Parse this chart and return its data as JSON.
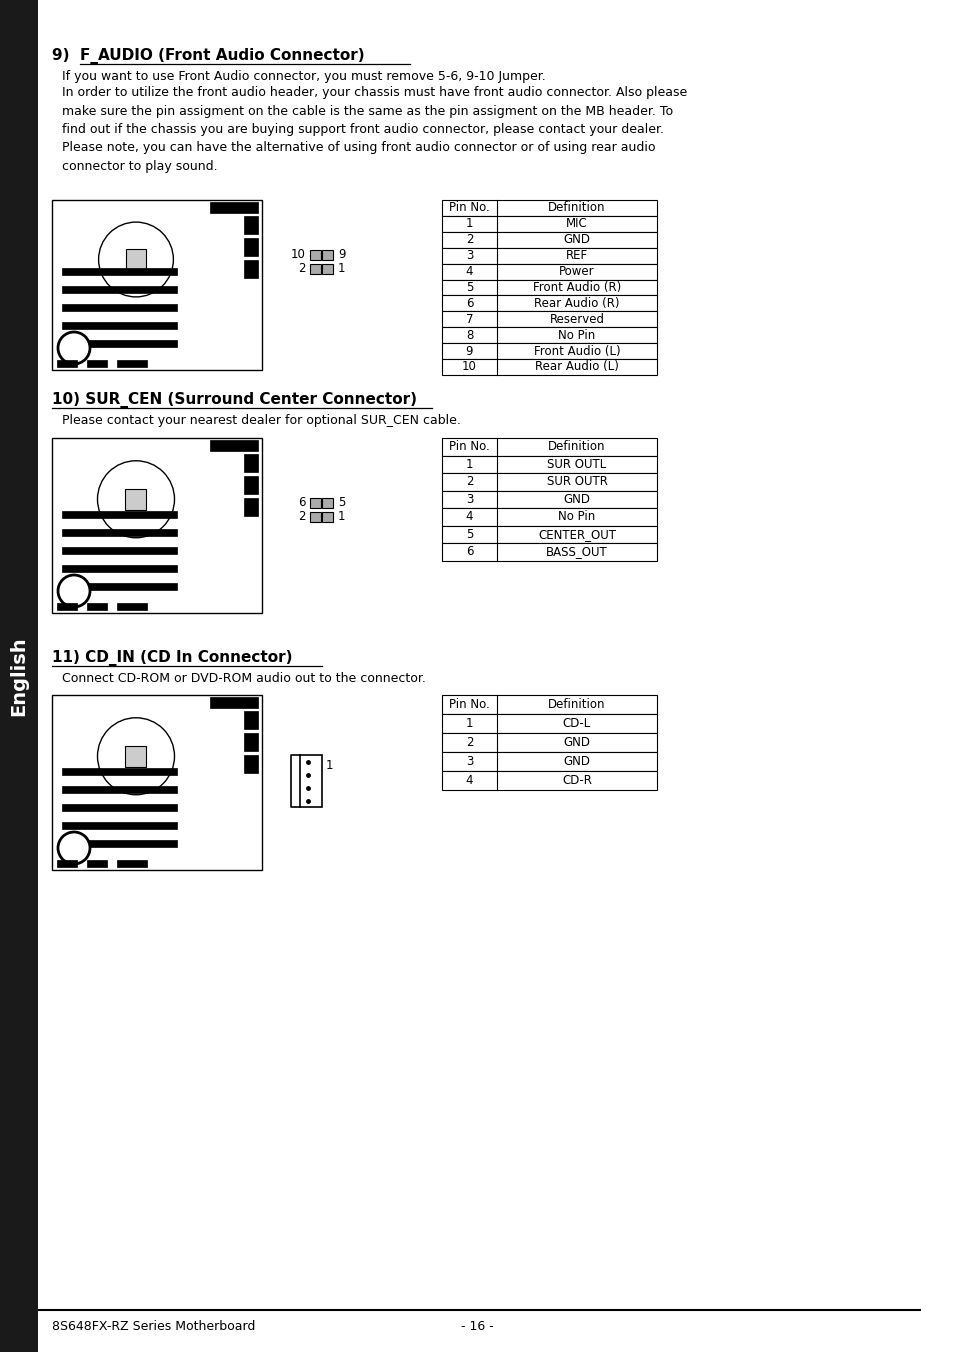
{
  "page_bg": "#ffffff",
  "sidebar_bg": "#1a1a1a",
  "sidebar_text": "English",
  "sidebar_text_color": "#ffffff",
  "footer_left": "8S648FX-RZ Series Motherboard",
  "footer_right": "- 16 -",
  "section9_title_prefix": "9)  ",
  "section9_title_bold": "F_AUDIO (Front Audio Connector)",
  "section9_body1": "If you want to use Front Audio connector, you must remove 5-6, 9-10 Jumper.",
  "section9_body2": "In order to utilize the front audio header, your chassis must have front audio connector. Also please\nmake sure the pin assigment on the cable is the same as the pin assigment on the MB header. To\nfind out if the chassis you are buying support front audio connector, please contact your dealer.\nPlease note, you can have the alternative of using front audio connector or of using rear audio\nconnector to play sound.",
  "section9_table": {
    "headers": [
      "Pin No.",
      "Definition"
    ],
    "rows": [
      [
        "1",
        "MIC"
      ],
      [
        "2",
        "GND"
      ],
      [
        "3",
        "REF"
      ],
      [
        "4",
        "Power"
      ],
      [
        "5",
        "Front Audio (R)"
      ],
      [
        "6",
        "Rear Audio (R)"
      ],
      [
        "7",
        "Reserved"
      ],
      [
        "8",
        "No Pin"
      ],
      [
        "9",
        "Front Audio (L)"
      ],
      [
        "10",
        "Rear Audio (L)"
      ]
    ]
  },
  "section10_title": "10) SUR_CEN (Surround Center Connector)",
  "section10_body": "Please contact your nearest dealer for optional SUR_CEN cable.",
  "section10_table": {
    "headers": [
      "Pin No.",
      "Definition"
    ],
    "rows": [
      [
        "1",
        "SUR OUTL"
      ],
      [
        "2",
        "SUR OUTR"
      ],
      [
        "3",
        "GND"
      ],
      [
        "4",
        "No Pin"
      ],
      [
        "5",
        "CENTER_OUT"
      ],
      [
        "6",
        "BASS_OUT"
      ]
    ]
  },
  "section11_title": "11) CD_IN (CD In Connector)",
  "section11_body": "Connect CD-ROM or DVD-ROM audio out to the connector.",
  "section11_table": {
    "headers": [
      "Pin No.",
      "Definition"
    ],
    "rows": [
      [
        "1",
        "CD-L"
      ],
      [
        "2",
        "GND"
      ],
      [
        "3",
        "GND"
      ],
      [
        "4",
        "CD-R"
      ]
    ]
  }
}
